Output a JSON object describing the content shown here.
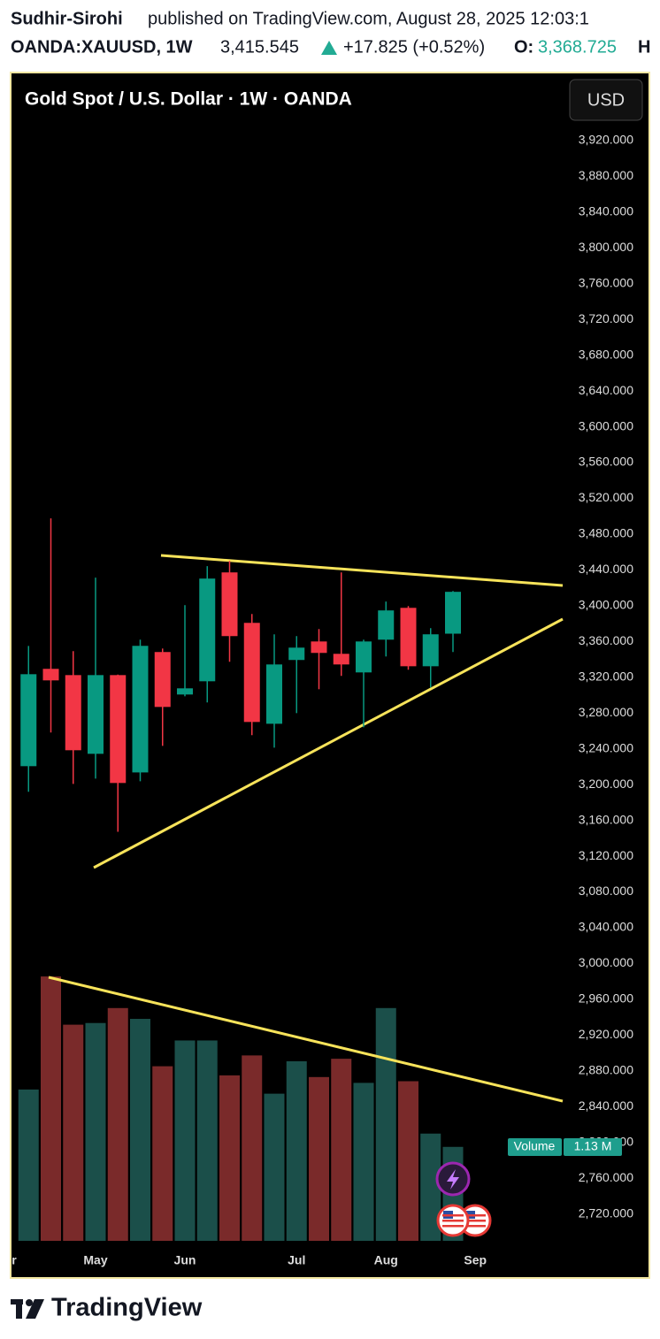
{
  "header": {
    "author": "Sudhir-Sirohi",
    "published": "published on TradingView.com, August 28, 2025 12:03:1",
    "symbol": "OANDA:XAUUSD, 1W",
    "last": "3,415.545",
    "change": "+17.825 (+0.52%)",
    "open_label": "O:",
    "open": "3,368.725",
    "high_label": "H"
  },
  "chart_data": {
    "type": "candlestick",
    "title": "Gold Spot / U.S. Dollar · 1W · OANDA",
    "currency_button": "USD",
    "categories": [
      "r",
      null,
      null,
      null,
      "May",
      null,
      null,
      null,
      "Jun",
      null,
      null,
      null,
      null,
      "Jul",
      null,
      null,
      null,
      "Aug",
      null,
      null,
      null,
      "Sep"
    ],
    "open": [
      null,
      3220.6,
      3329.4,
      3322.4,
      3234.4,
      3322.4,
      3213.6,
      3348.2,
      3300.7,
      3315.5,
      3437.2,
      3380.8,
      3268,
      3339.3,
      3360,
      3346.2,
      3325.4,
      3362,
      3397.6,
      3332.3,
      3368.7,
      null
    ],
    "high": [
      null,
      3355,
      3497.6,
      3349.2,
      3431.3,
      3323,
      3362,
      3352.1,
      3400.6,
      3444.2,
      3450.1,
      3390.7,
      3368,
      3366,
      3373.9,
      3437.2,
      3362,
      3404.6,
      3399.6,
      3374.9,
      3416.4,
      null
    ],
    "low": [
      null,
      3192,
      3258.2,
      3200.8,
      3206.7,
      3147.3,
      3203.7,
      3243.3,
      3298.7,
      3291.8,
      3337.3,
      3255.2,
      3241.3,
      3279.9,
      3306.6,
      3321.5,
      3264.1,
      3343.2,
      3328.4,
      3308.6,
      3348.2,
      null
    ],
    "close": [
      null,
      3323.4,
      3316.5,
      3238.4,
      3322.4,
      3201.8,
      3355.1,
      3286.8,
      3307.6,
      3430.3,
      3366,
      3270,
      3334.3,
      3353.1,
      3347.2,
      3334.3,
      3360,
      3394.7,
      3332.3,
      3368,
      3415.5,
      null
    ],
    "up_color": "#089981",
    "down_color": "#f23645",
    "volume": {
      "name": "Volume",
      "up_color": "#1b4f4a",
      "down_color": "#7a2a2a",
      "values": [
        null,
        1.82,
        3.18,
        2.6,
        2.62,
        2.8,
        2.67,
        2.1,
        2.41,
        2.41,
        1.99,
        2.23,
        1.77,
        2.16,
        1.97,
        2.19,
        1.9,
        2.8,
        1.92,
        1.29,
        1.13,
        null
      ],
      "value_labels": [
        null,
        null,
        null,
        null,
        null,
        null,
        null,
        null,
        null,
        null,
        null,
        null,
        null,
        null,
        null,
        null,
        null,
        null,
        null,
        null,
        "1.13 M",
        null
      ]
    },
    "ylim": [
      2690,
      3996
    ],
    "yticks": [
      {
        "value": 3920,
        "label": "3,920.000"
      },
      {
        "value": 3880,
        "label": "3,880.000"
      },
      {
        "value": 3840,
        "label": "3,840.000"
      },
      {
        "value": 3800,
        "label": "3,800.000"
      },
      {
        "value": 3760,
        "label": "3,760.000"
      },
      {
        "value": 3720,
        "label": "3,720.000"
      },
      {
        "value": 3680,
        "label": "3,680.000"
      },
      {
        "value": 3640,
        "label": "3,640.000"
      },
      {
        "value": 3600,
        "label": "3,600.000"
      },
      {
        "value": 3560,
        "label": "3,560.000"
      },
      {
        "value": 3520,
        "label": "3,520.000"
      },
      {
        "value": 3480,
        "label": "3,480.000"
      },
      {
        "value": 3440,
        "label": "3,440.000"
      },
      {
        "value": 3400,
        "label": "3,400.000"
      },
      {
        "value": 3360,
        "label": "3,360.000"
      },
      {
        "value": 3320,
        "label": "3,320.000"
      },
      {
        "value": 3280,
        "label": "3,280.000"
      },
      {
        "value": 3240,
        "label": "3,240.000"
      },
      {
        "value": 3200,
        "label": "3,200.000"
      },
      {
        "value": 3160,
        "label": "3,160.000"
      },
      {
        "value": 3120,
        "label": "3,120.000"
      },
      {
        "value": 3080,
        "label": "3,080.000"
      },
      {
        "value": 3040,
        "label": "3,040.000"
      },
      {
        "value": 3000,
        "label": "3,000.000"
      },
      {
        "value": 2960,
        "label": "2,960.000"
      },
      {
        "value": 2920,
        "label": "2,920.000"
      },
      {
        "value": 2880,
        "label": "2,880.000"
      },
      {
        "value": 2840,
        "label": "2,840.000"
      },
      {
        "value": 2800,
        "label": "2,800.000"
      },
      {
        "value": 2760,
        "label": "2,760.000"
      },
      {
        "value": 2720,
        "label": "2,720.000"
      }
    ],
    "grid": false
  },
  "footer": {
    "brand": "TradingView"
  }
}
